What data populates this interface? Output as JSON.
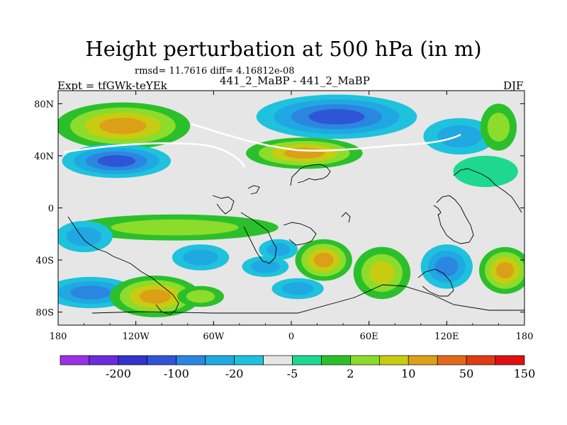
{
  "title": "Height perturbation at 500 hPa (in m)",
  "subtitle": "rmsd= 11.7616 diff= 4.16812e-08",
  "left_label": "Expt = tfGWk-teYEk",
  "center_label": "441_2_MaBP - 441_2_MaBP",
  "right_label": "DJF",
  "chart_data": {
    "type": "heatmap",
    "title": "Height perturbation at 500 hPa (in m)",
    "projection": "cylindrical equidistant",
    "xlim": [
      -180,
      180
    ],
    "ylim": [
      -90,
      90
    ],
    "x_ticks": [
      {
        "value": -180,
        "label": "180"
      },
      {
        "value": -120,
        "label": "120W"
      },
      {
        "value": -60,
        "label": "60W"
      },
      {
        "value": 0,
        "label": "0"
      },
      {
        "value": 60,
        "label": "60E"
      },
      {
        "value": 120,
        "label": "120E"
      },
      {
        "value": 180,
        "label": "180"
      }
    ],
    "y_ticks": [
      {
        "value": 80,
        "label": "80N"
      },
      {
        "value": 40,
        "label": "40N"
      },
      {
        "value": 0,
        "label": "0"
      },
      {
        "value": -40,
        "label": "40S"
      },
      {
        "value": -80,
        "label": "80S"
      }
    ],
    "colorbar": {
      "colors": [
        "#9a31e6",
        "#6a2cdc",
        "#3232cc",
        "#2f55d6",
        "#2b86e0",
        "#20a8e2",
        "#1ec2dc",
        "#e6e6e6",
        "#1ed890",
        "#2bc02b",
        "#8cdc2c",
        "#c8cc10",
        "#dca018",
        "#e06a1a",
        "#e03c12",
        "#e01010"
      ],
      "labels": [
        {
          "value": "-200",
          "after_index": 1
        },
        {
          "value": "-100",
          "after_index": 3
        },
        {
          "value": "-20",
          "after_index": 5
        },
        {
          "value": "-5",
          "after_index": 7
        },
        {
          "value": "2",
          "after_index": 9
        },
        {
          "value": "10",
          "after_index": 11
        },
        {
          "value": "50",
          "after_index": 13
        },
        {
          "value": "150",
          "after_index": 15
        }
      ]
    },
    "regions": [
      {
        "lon": -130,
        "lat": 63,
        "rx": 52,
        "ry": 18,
        "levels": [
          9,
          10,
          11,
          12
        ]
      },
      {
        "lon": 10,
        "lat": 42,
        "rx": 45,
        "ry": 12,
        "levels": [
          9,
          10,
          11,
          12
        ]
      },
      {
        "lon": 35,
        "lat": 70,
        "rx": 62,
        "ry": 17,
        "levels": [
          6,
          5,
          4,
          3
        ]
      },
      {
        "lon": -135,
        "lat": 36,
        "rx": 42,
        "ry": 13,
        "levels": [
          6,
          5,
          4,
          3
        ]
      },
      {
        "lon": 130,
        "lat": 55,
        "rx": 28,
        "ry": 14,
        "levels": [
          6,
          5
        ]
      },
      {
        "lon": 160,
        "lat": 62,
        "rx": 14,
        "ry": 18,
        "levels": [
          9,
          10
        ]
      },
      {
        "lon": 150,
        "lat": 28,
        "rx": 25,
        "ry": 12,
        "levels": [
          8
        ]
      },
      {
        "lon": -90,
        "lat": -15,
        "rx": 80,
        "ry": 10,
        "levels": [
          9,
          10
        ]
      },
      {
        "lon": -160,
        "lat": -22,
        "rx": 22,
        "ry": 12,
        "levels": [
          6,
          5
        ]
      },
      {
        "lon": -155,
        "lat": -65,
        "rx": 35,
        "ry": 12,
        "levels": [
          6,
          5,
          4
        ]
      },
      {
        "lon": -105,
        "lat": -68,
        "rx": 35,
        "ry": 16,
        "levels": [
          9,
          10,
          11,
          12
        ]
      },
      {
        "lon": -70,
        "lat": -38,
        "rx": 22,
        "ry": 10,
        "levels": [
          6,
          5
        ]
      },
      {
        "lon": 25,
        "lat": -40,
        "rx": 22,
        "ry": 16,
        "levels": [
          9,
          10,
          11,
          12
        ]
      },
      {
        "lon": -10,
        "lat": -32,
        "rx": 15,
        "ry": 8,
        "levels": [
          6,
          5
        ]
      },
      {
        "lon": 5,
        "lat": -62,
        "rx": 20,
        "ry": 8,
        "levels": [
          6,
          5
        ]
      },
      {
        "lon": -20,
        "lat": -45,
        "rx": 18,
        "ry": 8,
        "levels": [
          6,
          5
        ]
      },
      {
        "lon": 70,
        "lat": -50,
        "rx": 22,
        "ry": 20,
        "levels": [
          9,
          10,
          11
        ]
      },
      {
        "lon": 120,
        "lat": -45,
        "rx": 20,
        "ry": 17,
        "levels": [
          6,
          5,
          4
        ]
      },
      {
        "lon": 165,
        "lat": -48,
        "rx": 20,
        "ry": 18,
        "levels": [
          9,
          10,
          11,
          12
        ]
      },
      {
        "lon": -70,
        "lat": -68,
        "rx": 18,
        "ry": 8,
        "levels": [
          9,
          10
        ]
      }
    ]
  }
}
